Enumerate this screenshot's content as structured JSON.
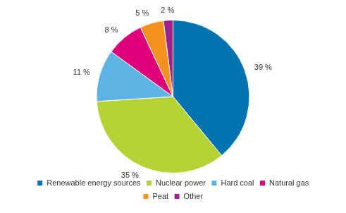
{
  "chart_data": {
    "type": "pie",
    "categories": [
      "Renewable energy sources",
      "Nuclear power",
      "Hard coal",
      "Natural gas",
      "Peat",
      "Other"
    ],
    "values": [
      39,
      35,
      11,
      8,
      5,
      2
    ],
    "value_labels": [
      "39 %",
      "35 %",
      "11 %",
      "8 %",
      "5 %",
      "2 %"
    ],
    "colors": [
      "#0073b0",
      "#b5d334",
      "#5cb3e4",
      "#e0007a",
      "#f5911e",
      "#9e1f8e"
    ],
    "legend": "bottom",
    "data_labels": true
  }
}
